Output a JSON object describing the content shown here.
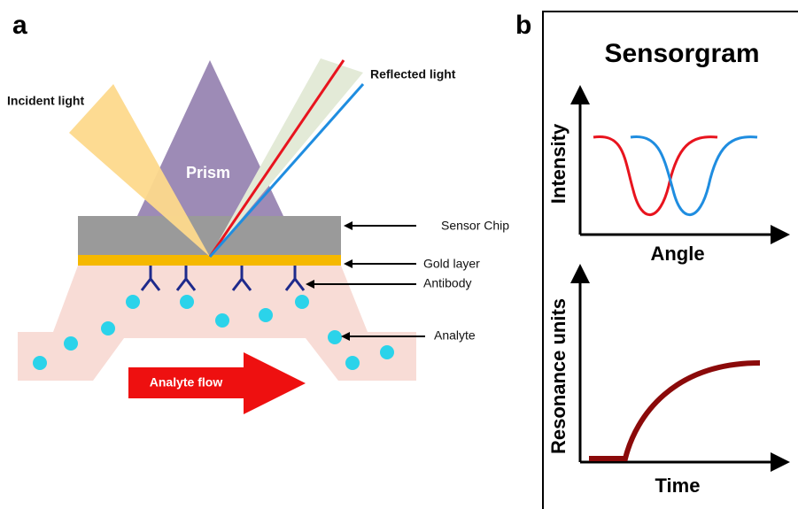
{
  "panel_a": {
    "label": "a",
    "incident_light": "Incident light",
    "prism": "Prism",
    "reflected_light": "Reflected light",
    "sensor_chip": "Sensor Chip",
    "gold_layer": "Gold layer",
    "antibody": "Antibody",
    "analyte": "Analyte",
    "analyte_flow": "Analyte flow"
  },
  "panel_b": {
    "label": "b",
    "title": "Sensorgram",
    "top_y_label": "Intensity",
    "top_x_label": "Angle",
    "bottom_y_label": "Resonance units",
    "bottom_x_label": "Time"
  }
}
